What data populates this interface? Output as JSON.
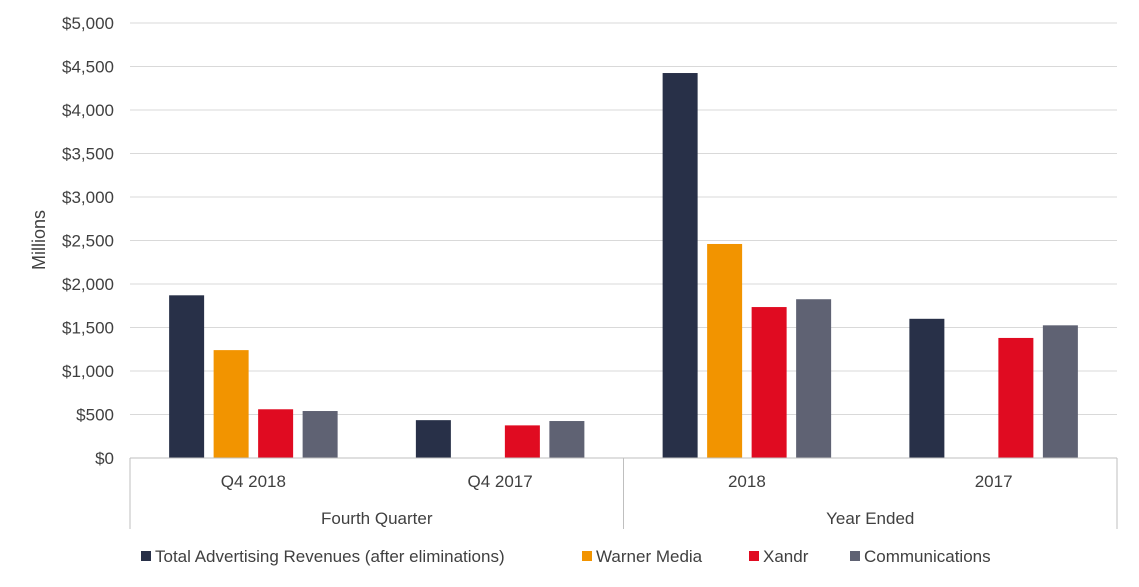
{
  "chart_data": {
    "type": "bar",
    "ylabel": "Millions",
    "ylim": [
      0,
      5000
    ],
    "yticks": [
      0,
      500,
      1000,
      1500,
      2000,
      2500,
      3000,
      3500,
      4000,
      4500,
      5000
    ],
    "ytick_labels": [
      "$0",
      "$500",
      "$1,000",
      "$1,500",
      "$2,000",
      "$2,500",
      "$3,000",
      "$3,500",
      "$4,000",
      "$4,500",
      "$5,000"
    ],
    "categories": [
      "Q4 2018",
      "Q4 2017",
      "2018",
      "2017"
    ],
    "groups": [
      {
        "label": "Fourth Quarter",
        "categories": [
          "Q4 2018",
          "Q4 2017"
        ]
      },
      {
        "label": "Year Ended",
        "categories": [
          "2018",
          "2017"
        ]
      }
    ],
    "series": [
      {
        "name": "Total Advertising Revenues (after eliminations)",
        "color": "#283048",
        "values": [
          1870,
          435,
          4425,
          1600
        ]
      },
      {
        "name": "Warner Media",
        "color": "#f29400",
        "values": [
          1240,
          null,
          2460,
          null
        ]
      },
      {
        "name": "Xandr",
        "color": "#e00b21",
        "values": [
          560,
          375,
          1735,
          1380
        ]
      },
      {
        "name": "Communications",
        "color": "#5f6273",
        "values": [
          540,
          425,
          1825,
          1525
        ]
      }
    ],
    "grid": true,
    "legend_position": "bottom"
  }
}
